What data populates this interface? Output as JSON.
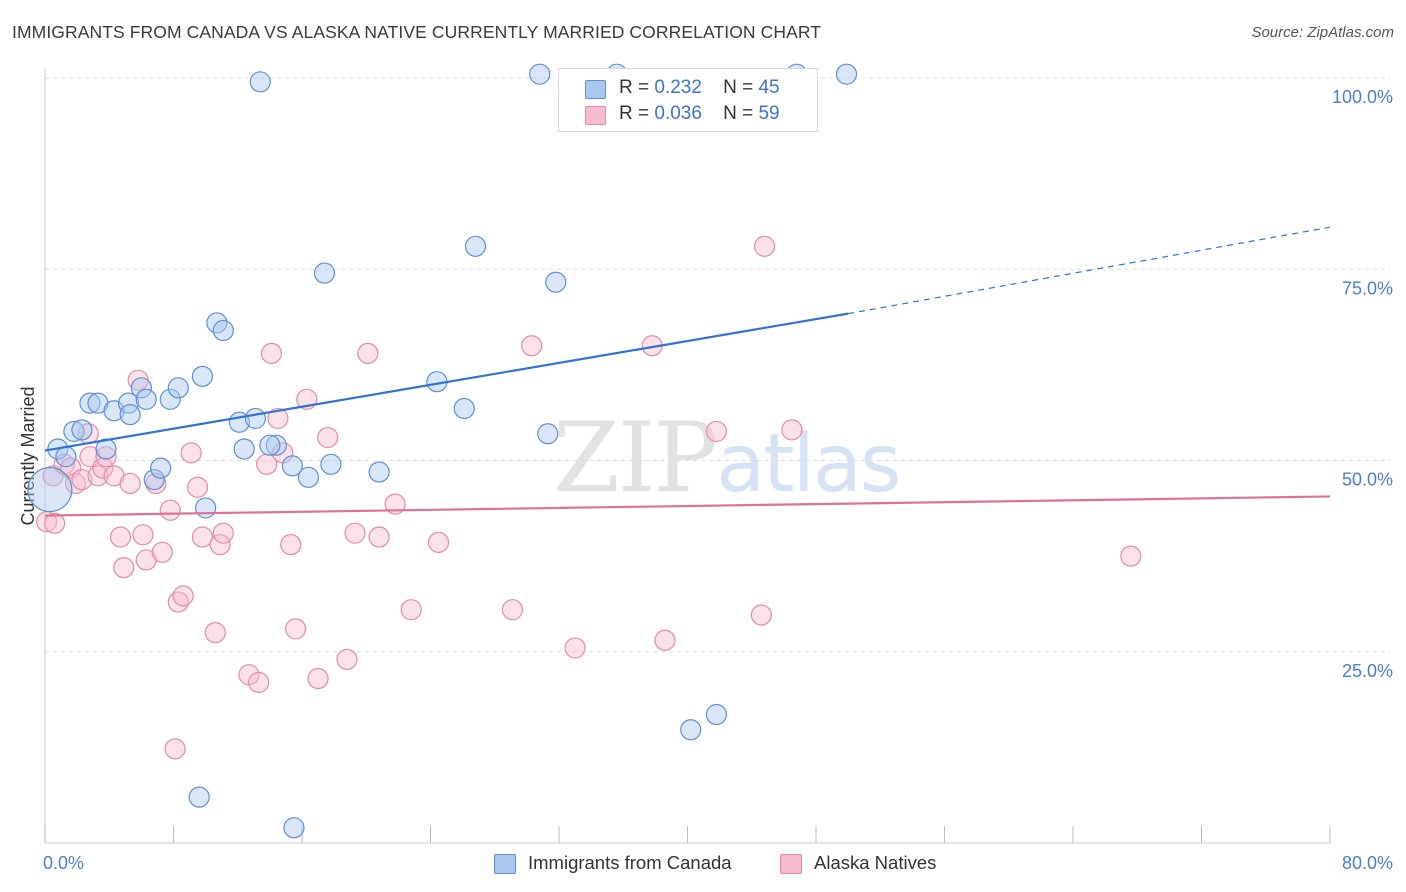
{
  "title": "IMMIGRANTS FROM CANADA VS ALASKA NATIVE CURRENTLY MARRIED CORRELATION CHART",
  "source": "Source: ZipAtlas.com",
  "watermark": {
    "zip": "ZIP",
    "atlas": "atlas"
  },
  "legend": {
    "r_label": "R =",
    "n_label": "N =",
    "rows": [
      {
        "r": "0.232",
        "n": "45",
        "color": "#a9c8ef"
      },
      {
        "r": "0.036",
        "n": "59",
        "color": "#f6bccd"
      }
    ]
  },
  "bottom_legend": [
    {
      "label": "Immigrants from Canada",
      "color": "#a9c8ef"
    },
    {
      "label": "Alaska Natives",
      "color": "#f6bccd"
    }
  ],
  "colors": {
    "blue_fill": "#a9c8ef",
    "blue_stroke": "#5b8fd6",
    "blue_line": "#2f74d0",
    "pink_fill": "#f6bccd",
    "pink_stroke": "#e68aa8",
    "pink_line": "#e0709a",
    "grid": "#dddddd",
    "tick_text": "#4a7fcf"
  },
  "chart_data": {
    "type": "scatter",
    "title": "IMMIGRANTS FROM CANADA VS ALASKA NATIVE CURRENTLY MARRIED CORRELATION CHART",
    "xlabel": "",
    "ylabel": "Currently Married",
    "xlim": [
      0,
      80
    ],
    "ylim": [
      0,
      100
    ],
    "x_tick_labels": [
      "0.0%",
      "80.0%"
    ],
    "y_tick_labels": [
      "100.0%",
      "75.0%",
      "50.0%",
      "25.0%"
    ],
    "y_ticks": [
      100,
      75,
      50,
      25
    ],
    "x_minor_ticks": [
      0,
      8,
      16,
      24,
      32,
      40,
      48,
      56,
      64,
      72,
      80
    ],
    "grid": true,
    "series": [
      {
        "name": "Immigrants from Canada",
        "r": 0.232,
        "n": 45,
        "trend": {
          "x": [
            0,
            50
          ],
          "y": [
            51.3,
            69.2
          ],
          "dashed_to": [
            80,
            80.5
          ]
        },
        "points": [
          [
            0.3,
            46.2,
            22
          ],
          [
            0.8,
            51.5,
            10
          ],
          [
            1.3,
            50.5,
            10
          ],
          [
            1.8,
            53.8,
            10
          ],
          [
            2.3,
            54.0,
            10
          ],
          [
            2.8,
            57.5,
            10
          ],
          [
            3.3,
            57.5,
            10
          ],
          [
            3.8,
            51.5,
            10
          ],
          [
            4.3,
            56.5,
            10
          ],
          [
            5.2,
            57.5,
            10
          ],
          [
            5.3,
            56.0,
            10
          ],
          [
            6.0,
            59.5,
            10
          ],
          [
            6.3,
            58.0,
            10
          ],
          [
            6.8,
            47.5,
            10
          ],
          [
            7.2,
            49.0,
            10
          ],
          [
            7.8,
            58.0,
            10
          ],
          [
            8.3,
            59.5,
            10
          ],
          [
            9.8,
            61.0,
            10
          ],
          [
            10.0,
            43.8,
            10
          ],
          [
            10.7,
            68.0,
            10
          ],
          [
            11.1,
            67.0,
            10
          ],
          [
            12.1,
            55.0,
            10
          ],
          [
            12.4,
            51.5,
            10
          ],
          [
            13.1,
            55.5,
            10
          ],
          [
            14.4,
            52.0,
            10
          ],
          [
            15.4,
            49.3,
            10
          ],
          [
            16.4,
            47.8,
            10
          ],
          [
            17.4,
            74.5,
            10
          ],
          [
            17.8,
            49.5,
            10
          ],
          [
            20.8,
            48.5,
            10
          ],
          [
            24.4,
            60.3,
            10
          ],
          [
            26.1,
            56.8,
            10
          ],
          [
            26.8,
            78.0,
            10
          ],
          [
            30.8,
            100.5,
            10
          ],
          [
            31.3,
            53.5,
            10
          ],
          [
            31.8,
            73.3,
            10
          ],
          [
            35.6,
            100.5,
            10
          ],
          [
            40.2,
            14.8,
            10
          ],
          [
            41.8,
            16.8,
            10
          ],
          [
            46.8,
            100.5,
            10
          ],
          [
            49.9,
            100.5,
            10
          ],
          [
            13.4,
            99.5,
            10
          ],
          [
            9.6,
            6.0,
            10
          ],
          [
            15.5,
            2.0,
            10
          ],
          [
            14.0,
            52.0,
            10
          ]
        ]
      },
      {
        "name": "Alaska Natives",
        "r": 0.036,
        "n": 59,
        "trend": {
          "x": [
            0,
            80
          ],
          "y": [
            42.8,
            45.3
          ]
        },
        "points": [
          [
            0.1,
            42.0,
            10
          ],
          [
            0.5,
            48.0,
            10
          ],
          [
            1.2,
            49.5,
            10
          ],
          [
            1.6,
            49.0,
            10
          ],
          [
            1.9,
            47.0,
            10
          ],
          [
            2.3,
            47.5,
            10
          ],
          [
            2.7,
            53.5,
            10
          ],
          [
            2.8,
            50.5,
            10
          ],
          [
            3.3,
            48.0,
            10
          ],
          [
            3.6,
            49.0,
            10
          ],
          [
            3.8,
            50.5,
            10
          ],
          [
            4.3,
            48.0,
            10
          ],
          [
            4.7,
            40.0,
            10
          ],
          [
            4.9,
            36.0,
            10
          ],
          [
            5.3,
            47.0,
            10
          ],
          [
            5.8,
            60.5,
            10
          ],
          [
            6.1,
            40.3,
            10
          ],
          [
            6.3,
            37.0,
            10
          ],
          [
            6.9,
            47.0,
            10
          ],
          [
            7.3,
            38.0,
            10
          ],
          [
            7.8,
            43.5,
            10
          ],
          [
            8.1,
            12.3,
            10
          ],
          [
            8.3,
            31.5,
            10
          ],
          [
            8.6,
            32.3,
            10
          ],
          [
            9.1,
            51.0,
            10
          ],
          [
            9.5,
            46.5,
            10
          ],
          [
            9.8,
            40.0,
            10
          ],
          [
            10.6,
            27.5,
            10
          ],
          [
            10.9,
            39.0,
            10
          ],
          [
            11.1,
            40.5,
            10
          ],
          [
            12.7,
            22.0,
            10
          ],
          [
            13.3,
            21.0,
            10
          ],
          [
            13.8,
            49.5,
            10
          ],
          [
            14.1,
            64.0,
            10
          ],
          [
            14.5,
            55.5,
            10
          ],
          [
            14.8,
            51.0,
            10
          ],
          [
            15.3,
            39.0,
            10
          ],
          [
            15.6,
            28.0,
            10
          ],
          [
            16.3,
            58.0,
            10
          ],
          [
            17.0,
            21.5,
            10
          ],
          [
            17.6,
            53.0,
            10
          ],
          [
            18.8,
            24.0,
            10
          ],
          [
            19.3,
            40.5,
            10
          ],
          [
            20.1,
            64.0,
            10
          ],
          [
            20.8,
            40.0,
            10
          ],
          [
            21.8,
            44.3,
            10
          ],
          [
            22.8,
            30.5,
            10
          ],
          [
            24.5,
            39.3,
            10
          ],
          [
            29.1,
            30.5,
            10
          ],
          [
            30.3,
            65.0,
            10
          ],
          [
            33.0,
            25.5,
            10
          ],
          [
            37.8,
            65.0,
            10
          ],
          [
            38.6,
            26.5,
            10
          ],
          [
            41.8,
            53.8,
            10
          ],
          [
            44.6,
            29.8,
            10
          ],
          [
            44.8,
            78.0,
            10
          ],
          [
            46.5,
            54.0,
            10
          ],
          [
            67.6,
            37.5,
            10
          ],
          [
            0.6,
            41.8,
            10
          ]
        ]
      }
    ]
  }
}
